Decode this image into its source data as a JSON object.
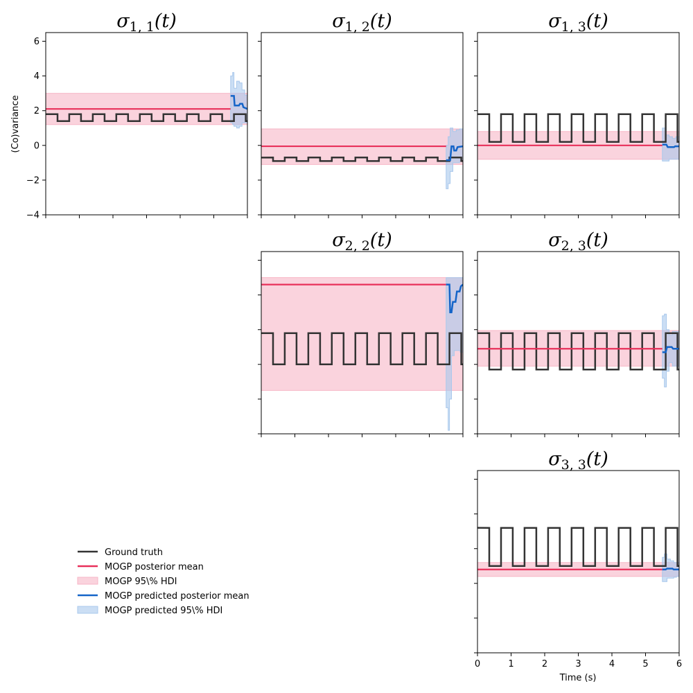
{
  "chart_data": {
    "type": "line",
    "xlabel": "Time (s)",
    "ylabel": "(Co)variance",
    "xlim": [
      0,
      6
    ],
    "ylim": [
      -4,
      6.5
    ],
    "x_ticks": [
      0,
      1,
      2,
      3,
      4,
      5,
      6
    ],
    "y_ticks": [
      -4,
      -2,
      0,
      2,
      4,
      6
    ],
    "prediction_start": 5.5,
    "colors": {
      "ground_truth": "#333333",
      "posterior_mean": "#e8305a",
      "hdi": "#f7b6c6",
      "pred_mean": "#1464c8",
      "pred_hdi": "#a9c8ec"
    },
    "legend": {
      "placement": "lower-left",
      "items": [
        {
          "key": "ground_truth",
          "label": "Ground truth",
          "kind": "line"
        },
        {
          "key": "posterior_mean",
          "label": "MOGP posterior mean",
          "kind": "line"
        },
        {
          "key": "hdi",
          "label": "MOGP 95\\% HDI",
          "kind": "patch"
        },
        {
          "key": "pred_mean",
          "label": "MOGP predicted posterior mean",
          "kind": "line"
        },
        {
          "key": "pred_hdi",
          "label": "MOGP predicted 95\\% HDI",
          "kind": "patch"
        }
      ]
    },
    "panels": [
      {
        "id": "s11",
        "row": 0,
        "col": 0,
        "title_sub": "1, 1",
        "ground_truth": {
          "period": 0.7,
          "high": 1.8,
          "low": 1.4,
          "high_fraction": 0.5
        },
        "posterior_mean": 2.1,
        "hdi": [
          1.2,
          3.0
        ],
        "pred_mean": [
          [
            5.5,
            2.85
          ],
          [
            5.6,
            2.85
          ],
          [
            5.62,
            2.3
          ],
          [
            5.75,
            2.3
          ],
          [
            5.78,
            2.4
          ],
          [
            5.85,
            2.4
          ],
          [
            5.88,
            2.2
          ],
          [
            6.0,
            2.1
          ]
        ],
        "pred_hdi": [
          [
            5.5,
            1.3,
            4.0
          ],
          [
            5.56,
            1.2,
            4.2
          ],
          [
            5.6,
            1.1,
            3.3
          ],
          [
            5.68,
            1.0,
            3.7
          ],
          [
            5.76,
            1.1,
            3.6
          ],
          [
            5.84,
            1.3,
            3.2
          ],
          [
            5.92,
            1.3,
            2.9
          ],
          [
            6.0,
            1.4,
            2.9
          ]
        ]
      },
      {
        "id": "s12",
        "row": 0,
        "col": 1,
        "title_sub": "1, 2",
        "ground_truth": {
          "period": 0.7,
          "high": -0.7,
          "low": -0.9,
          "high_fraction": 0.5
        },
        "posterior_mean": -0.05,
        "hdi": [
          -1.1,
          0.95
        ],
        "pred_mean": [
          [
            5.5,
            -0.85
          ],
          [
            5.62,
            -0.85
          ],
          [
            5.66,
            -0.05
          ],
          [
            5.72,
            -0.05
          ],
          [
            5.74,
            -0.3
          ],
          [
            5.8,
            -0.3
          ],
          [
            5.84,
            -0.1
          ],
          [
            6.0,
            -0.05
          ]
        ],
        "pred_hdi": [
          [
            5.5,
            -2.5,
            0.0
          ],
          [
            5.56,
            -2.2,
            0.5
          ],
          [
            5.62,
            -1.5,
            1.0
          ],
          [
            5.7,
            -1.0,
            0.8
          ],
          [
            5.8,
            -1.0,
            0.9
          ],
          [
            5.9,
            -0.9,
            0.95
          ],
          [
            6.0,
            -0.9,
            0.9
          ]
        ]
      },
      {
        "id": "s13",
        "row": 0,
        "col": 2,
        "title_sub": "1, 3",
        "ground_truth": {
          "period": 0.7,
          "high": 1.8,
          "low": 0.2,
          "high_fraction": 0.5
        },
        "posterior_mean": 0.0,
        "hdi": [
          -0.8,
          0.8
        ],
        "pred_mean": [
          [
            5.5,
            0.05
          ],
          [
            5.62,
            0.05
          ],
          [
            5.66,
            -0.1
          ],
          [
            5.85,
            -0.1
          ],
          [
            5.88,
            -0.05
          ],
          [
            6.0,
            -0.05
          ]
        ],
        "pred_hdi": [
          [
            5.5,
            -0.9,
            1.0
          ],
          [
            5.6,
            -0.9,
            0.6
          ],
          [
            5.7,
            -0.8,
            0.5
          ],
          [
            5.8,
            -0.8,
            0.4
          ],
          [
            5.9,
            -0.8,
            0.5
          ],
          [
            6.0,
            -0.7,
            0.4
          ]
        ]
      },
      {
        "id": "s22",
        "row": 1,
        "col": 1,
        "title_sub": "2, 2",
        "ground_truth": {
          "period": 0.7,
          "high": 1.8,
          "low": 0.0,
          "high_fraction": 0.5
        },
        "posterior_mean": 4.6,
        "hdi": [
          -1.5,
          5.0
        ],
        "pred_mean": [
          [
            5.5,
            4.6
          ],
          [
            5.6,
            4.6
          ],
          [
            5.62,
            3.0
          ],
          [
            5.66,
            3.0
          ],
          [
            5.7,
            3.6
          ],
          [
            5.78,
            3.6
          ],
          [
            5.82,
            4.2
          ],
          [
            5.9,
            4.2
          ],
          [
            5.94,
            4.5
          ],
          [
            6.0,
            4.6
          ]
        ],
        "pred_hdi": [
          [
            5.5,
            -2.5,
            5.0
          ],
          [
            5.56,
            -3.8,
            5.0
          ],
          [
            5.6,
            -2.0,
            5.0
          ],
          [
            5.66,
            0.5,
            5.0
          ],
          [
            5.74,
            0.8,
            5.0
          ],
          [
            5.84,
            0.8,
            5.0
          ],
          [
            5.92,
            0.7,
            5.0
          ],
          [
            6.0,
            0.8,
            5.0
          ]
        ]
      },
      {
        "id": "s23",
        "row": 1,
        "col": 2,
        "title_sub": "2, 3",
        "ground_truth": {
          "period": 0.7,
          "high": 1.8,
          "low": -0.3,
          "high_fraction": 0.5
        },
        "posterior_mean": 0.9,
        "hdi": [
          -0.1,
          1.95
        ],
        "pred_mean": [
          [
            5.5,
            0.7
          ],
          [
            5.6,
            0.7
          ],
          [
            5.64,
            1.0
          ],
          [
            5.78,
            1.0
          ],
          [
            5.82,
            0.9
          ],
          [
            6.0,
            0.9
          ]
        ],
        "pred_hdi": [
          [
            5.5,
            -0.8,
            2.8
          ],
          [
            5.56,
            -1.3,
            2.9
          ],
          [
            5.62,
            -0.4,
            2.0
          ],
          [
            5.7,
            0.1,
            1.7
          ],
          [
            5.8,
            -0.1,
            1.9
          ],
          [
            5.9,
            -0.1,
            1.9
          ],
          [
            6.0,
            0.0,
            1.9
          ]
        ]
      },
      {
        "id": "s33",
        "row": 2,
        "col": 2,
        "title_sub": "3, 3",
        "ground_truth": {
          "period": 0.7,
          "high": 3.2,
          "low": 1.0,
          "high_fraction": 0.5
        },
        "posterior_mean": 0.8,
        "hdi": [
          0.4,
          1.2
        ],
        "pred_mean": [
          [
            5.5,
            0.8
          ],
          [
            5.6,
            0.8
          ],
          [
            5.64,
            0.85
          ],
          [
            5.8,
            0.85
          ],
          [
            5.84,
            0.8
          ],
          [
            6.0,
            0.8
          ]
        ],
        "pred_hdi": [
          [
            5.5,
            0.1,
            1.5
          ],
          [
            5.56,
            0.1,
            1.7
          ],
          [
            5.64,
            0.3,
            1.4
          ],
          [
            5.74,
            0.3,
            1.3
          ],
          [
            5.84,
            0.35,
            1.2
          ],
          [
            5.92,
            0.4,
            1.2
          ],
          [
            6.0,
            0.4,
            1.2
          ]
        ]
      }
    ]
  }
}
